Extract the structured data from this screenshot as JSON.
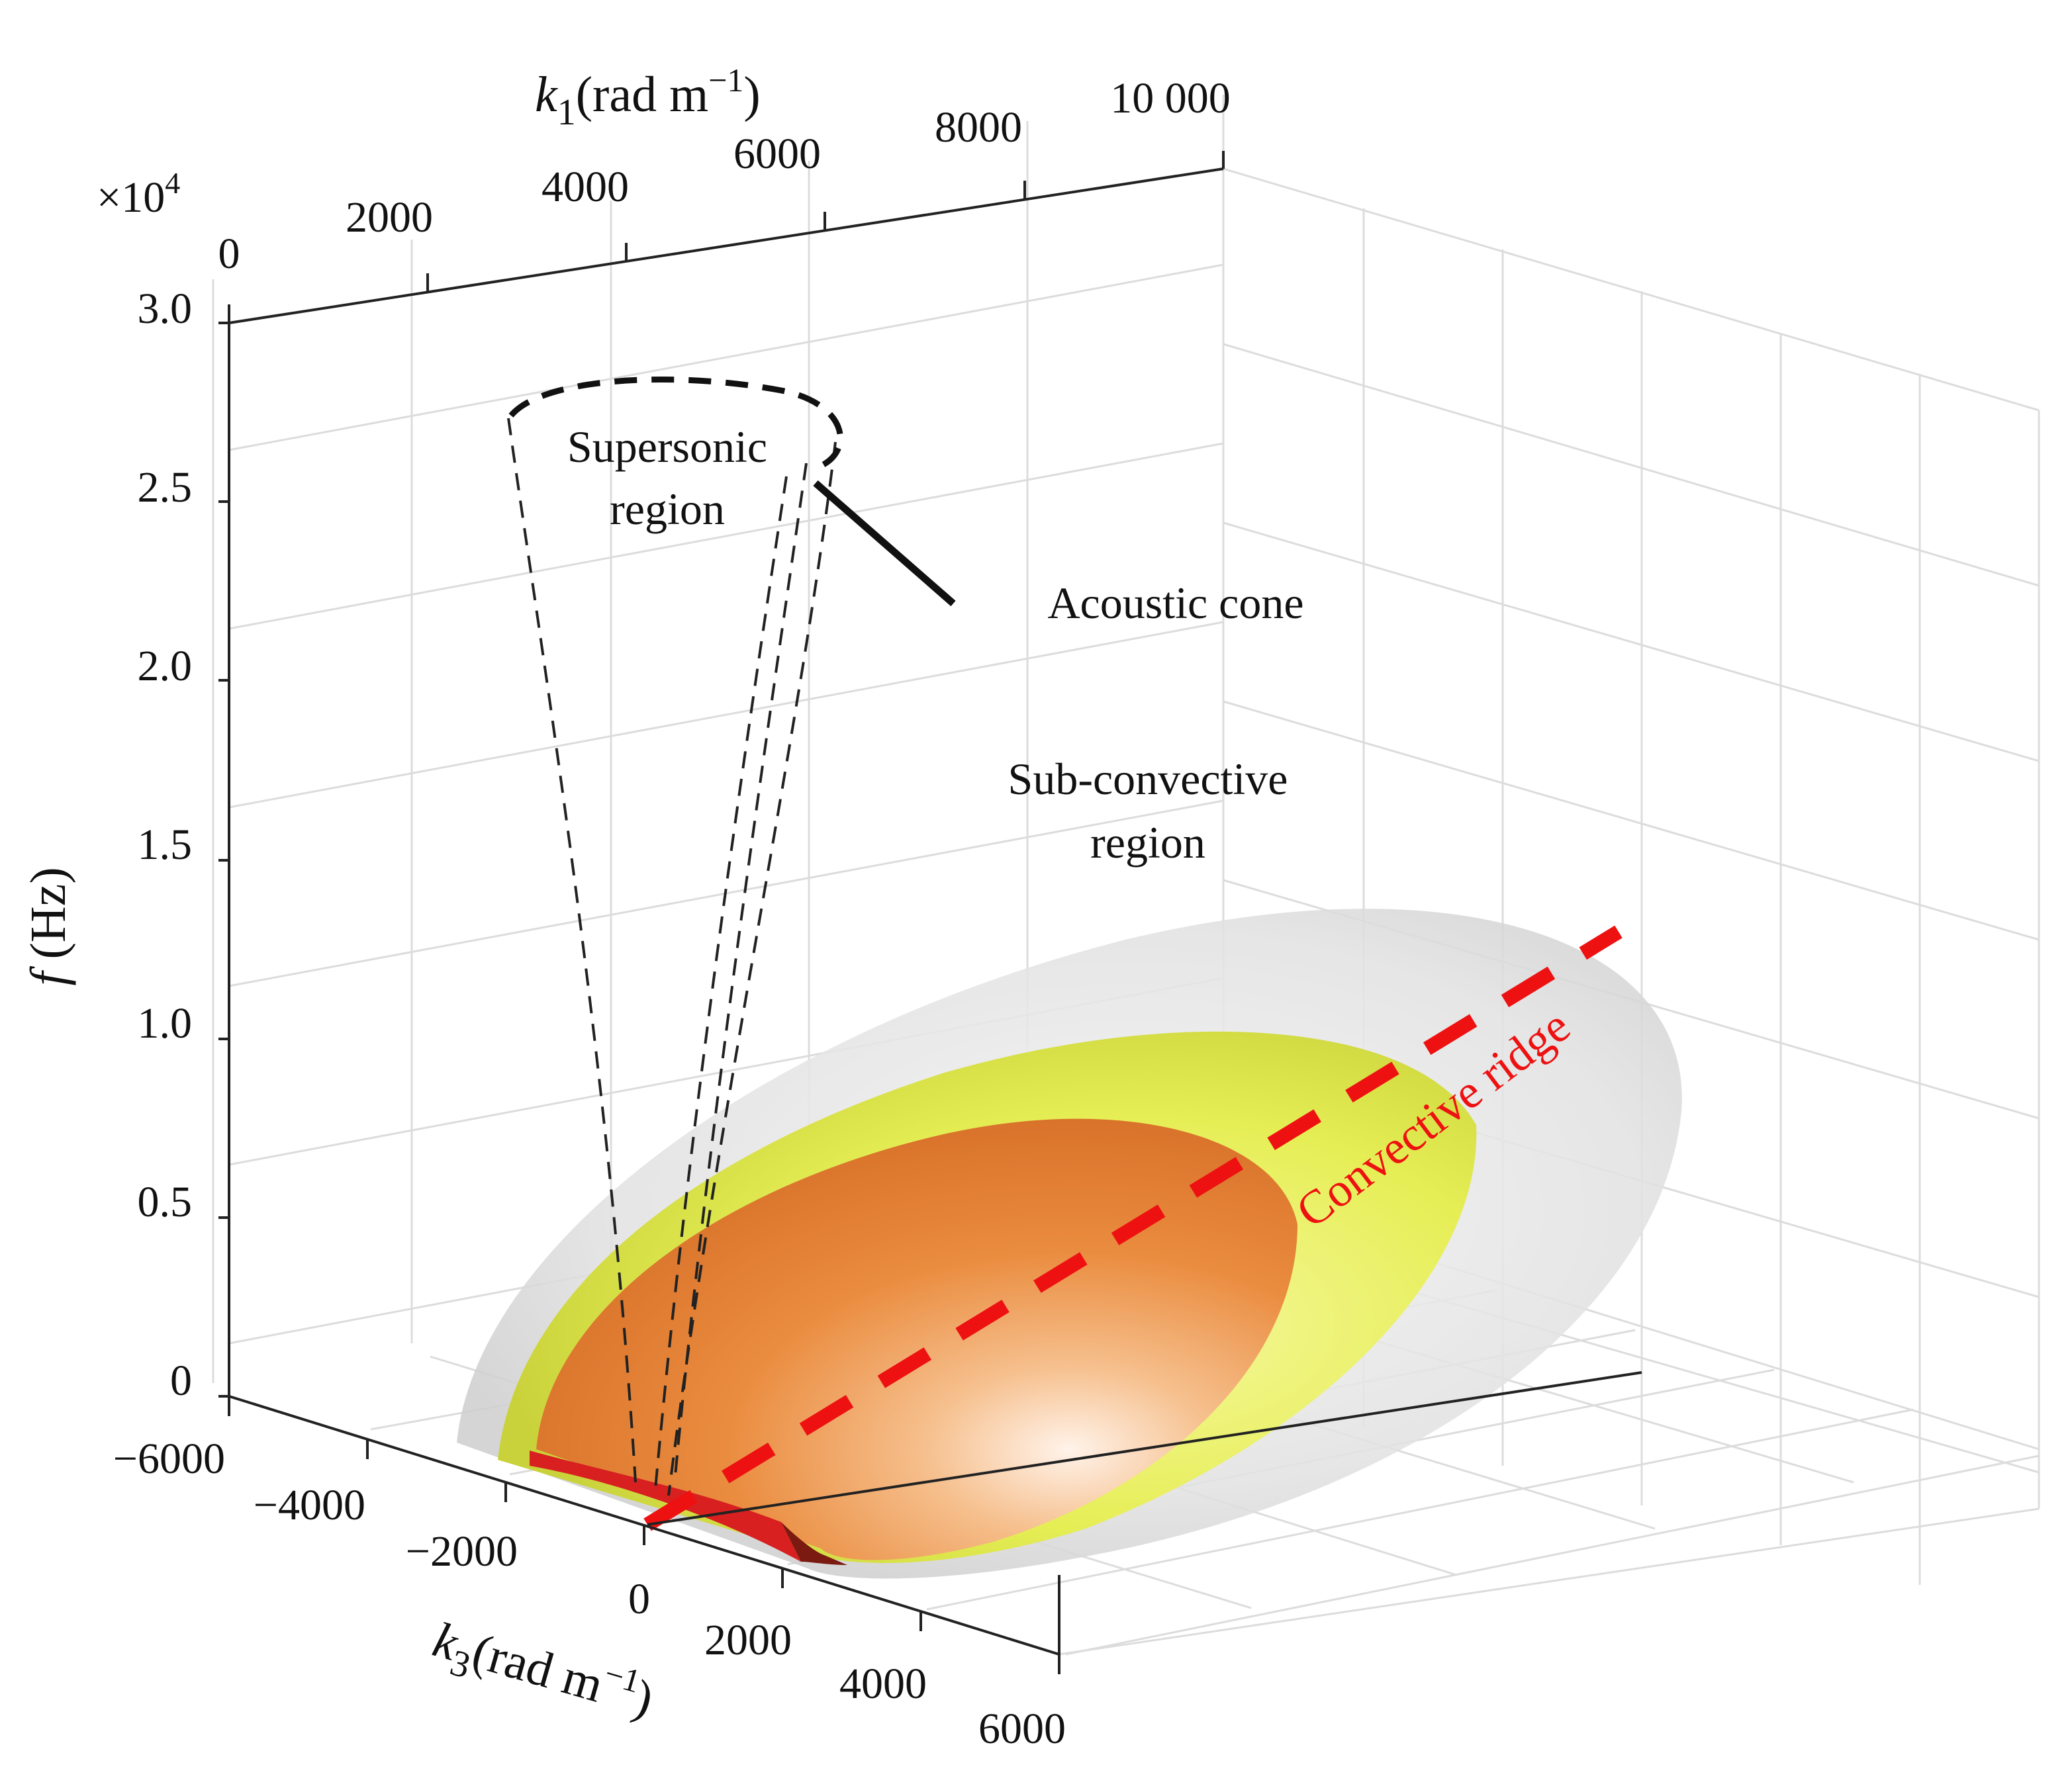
{
  "chart_data": {
    "type": "surface",
    "axes": {
      "x": {
        "label_var": "k",
        "label_sub": "1",
        "label_unit": "(rad m",
        "label_sup": "−1",
        "label_close": ")",
        "range": [
          0,
          10000
        ],
        "ticks": [
          "0",
          "2000",
          "4000",
          "6000",
          "8000",
          "10 000"
        ]
      },
      "y": {
        "label_var": "k",
        "label_sub": "3",
        "label_unit": "(rad m",
        "label_sup": "−1",
        "label_close": ")",
        "range": [
          -6000,
          6000
        ],
        "ticks": [
          "−6000",
          "−4000",
          "−2000",
          "0",
          "2000",
          "4000",
          "6000"
        ]
      },
      "z": {
        "label_var": "f",
        "label_unit": "(Hz)",
        "range": [
          0,
          30000
        ],
        "multiplier": "×10",
        "multiplier_exp": "4",
        "ticks": [
          "0",
          "0.5",
          "1.0",
          "1.5",
          "2.0",
          "2.5",
          "3.0"
        ]
      }
    },
    "grid": true,
    "series": [
      {
        "kind": "isosurface",
        "color": "#c8c8c8"
      },
      {
        "kind": "isosurface",
        "color": "#e2ec50"
      },
      {
        "kind": "isosurface",
        "color": "#e8873a"
      },
      {
        "kind": "acoustic-cone",
        "color": "#222222"
      },
      {
        "kind": "convective-ridge-line",
        "color": "#ee1111"
      }
    ],
    "annotations": {
      "supersonic": [
        "Supersonic",
        "region"
      ],
      "acoustic_cone": "Acoustic cone",
      "subconvective": [
        "Sub-convective",
        "region"
      ],
      "convective_ridge": "Convective ridge"
    }
  }
}
